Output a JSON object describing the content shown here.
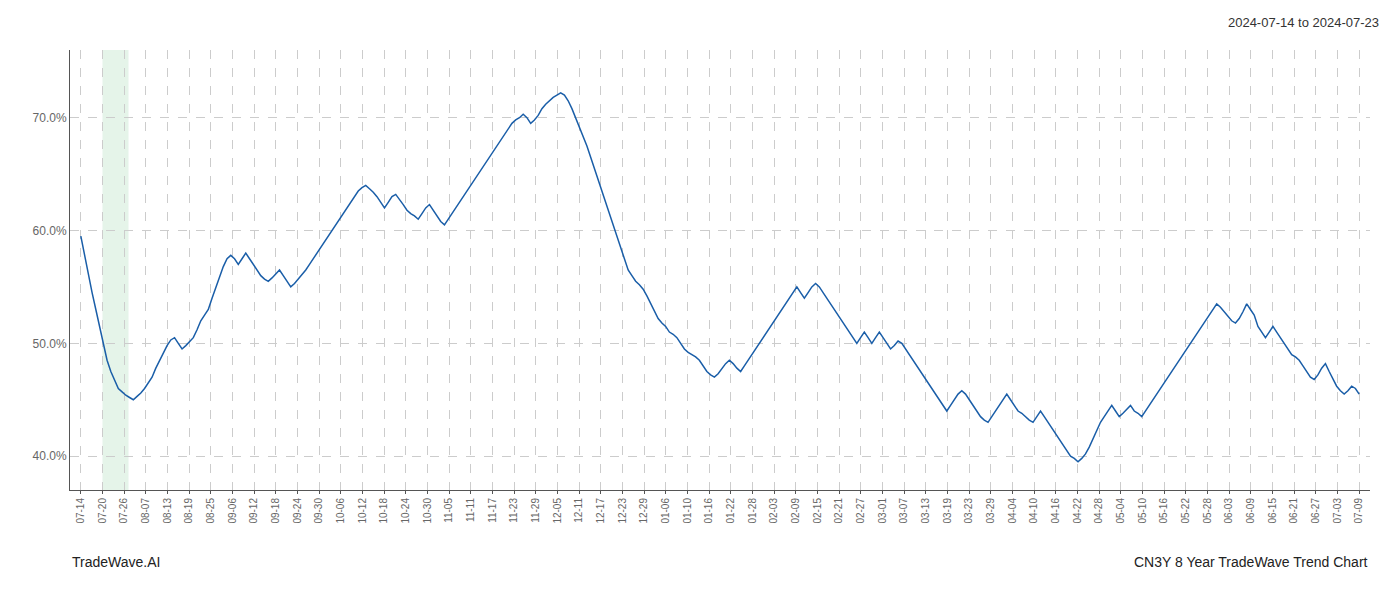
{
  "chart_data": {
    "type": "line",
    "title": "2024-07-14 to 2024-07-23",
    "annotations": [
      "TradeWave.AI",
      "CN3Y 8 Year TradeWave Trend Chart"
    ],
    "color": "#1a5ea8",
    "grid": true,
    "xlim": [
      -0.5,
      59.5
    ],
    "xticks": [
      {
        "value": 0,
        "label": "07-14"
      },
      {
        "value": 1,
        "label": "07-20"
      },
      {
        "value": 2,
        "label": "07-26"
      },
      {
        "value": 3,
        "label": "08-07"
      },
      {
        "value": 4,
        "label": "08-13"
      },
      {
        "value": 5,
        "label": "08-19"
      },
      {
        "value": 6,
        "label": "08-25"
      },
      {
        "value": 7,
        "label": "09-06"
      },
      {
        "value": 8,
        "label": "09-12"
      },
      {
        "value": 9,
        "label": "09-18"
      },
      {
        "value": 10,
        "label": "09-24"
      },
      {
        "value": 11,
        "label": "09-30"
      },
      {
        "value": 12,
        "label": "10-06"
      },
      {
        "value": 13,
        "label": "10-12"
      },
      {
        "value": 14,
        "label": "10-18"
      },
      {
        "value": 15,
        "label": "10-24"
      },
      {
        "value": 16,
        "label": "10-30"
      },
      {
        "value": 17,
        "label": "11-05"
      },
      {
        "value": 18,
        "label": "11-11"
      },
      {
        "value": 19,
        "label": "11-17"
      },
      {
        "value": 20,
        "label": "11-23"
      },
      {
        "value": 21,
        "label": "11-29"
      },
      {
        "value": 22,
        "label": "12-05"
      },
      {
        "value": 23,
        "label": "12-11"
      },
      {
        "value": 24,
        "label": "12-17"
      },
      {
        "value": 25,
        "label": "12-23"
      },
      {
        "value": 26,
        "label": "12-29"
      },
      {
        "value": 27,
        "label": "01-06"
      },
      {
        "value": 28,
        "label": "01-10"
      },
      {
        "value": 29,
        "label": "01-16"
      },
      {
        "value": 30,
        "label": "01-22"
      },
      {
        "value": 31,
        "label": "01-28"
      },
      {
        "value": 32,
        "label": "02-03"
      },
      {
        "value": 33,
        "label": "02-09"
      },
      {
        "value": 34,
        "label": "02-15"
      },
      {
        "value": 35,
        "label": "02-21"
      },
      {
        "value": 36,
        "label": "02-27"
      },
      {
        "value": 37,
        "label": "03-01"
      },
      {
        "value": 38,
        "label": "03-07"
      },
      {
        "value": 39,
        "label": "03-13"
      },
      {
        "value": 40,
        "label": "03-19"
      },
      {
        "value": 41,
        "label": "03-23"
      },
      {
        "value": 42,
        "label": "03-29"
      },
      {
        "value": 43,
        "label": "04-04"
      },
      {
        "value": 44,
        "label": "04-10"
      },
      {
        "value": 45,
        "label": "04-16"
      },
      {
        "value": 46,
        "label": "04-22"
      },
      {
        "value": 47,
        "label": "04-28"
      },
      {
        "value": 48,
        "label": "05-04"
      },
      {
        "value": 49,
        "label": "05-10"
      },
      {
        "value": 50,
        "label": "05-16"
      },
      {
        "value": 51,
        "label": "05-22"
      },
      {
        "value": 52,
        "label": "05-28"
      },
      {
        "value": 53,
        "label": "06-03"
      },
      {
        "value": 54,
        "label": "06-09"
      },
      {
        "value": 55,
        "label": "06-15"
      },
      {
        "value": 56,
        "label": "06-21"
      },
      {
        "value": 57,
        "label": "06-27"
      },
      {
        "value": 58,
        "label": "07-03"
      },
      {
        "value": 59,
        "label": "07-09"
      }
    ],
    "ylim": [
      37,
      76
    ],
    "yticks": [
      {
        "value": 40,
        "label": "40.0%"
      },
      {
        "value": 50,
        "label": "50.0%"
      },
      {
        "value": 60,
        "label": "60.0%"
      },
      {
        "value": 70,
        "label": "70.0%"
      }
    ],
    "highlight": {
      "x": [
        1,
        2.2
      ],
      "color": "#d4edda"
    },
    "values": [
      59.5,
      57.8,
      56.0,
      54.5,
      53.0,
      51.5,
      50.0,
      48.5,
      47.5,
      46.8,
      46.0,
      45.7,
      45.4,
      45.2,
      45.0,
      45.3,
      45.6,
      46.0,
      46.5,
      47.0,
      47.8,
      48.5,
      49.2,
      49.8,
      50.3,
      50.5,
      50.0,
      49.5,
      49.8,
      50.2,
      50.5,
      51.2,
      52.0,
      52.5,
      53.0,
      54.0,
      55.0,
      56.0,
      56.8,
      57.5,
      57.8,
      57.5,
      57.0,
      57.5,
      58.0,
      57.5,
      57.0,
      56.5,
      56.0,
      55.7,
      55.5,
      55.8,
      56.2,
      56.5,
      56.0,
      55.5,
      55.0,
      55.3,
      55.7,
      56.0,
      56.5,
      57.0,
      57.5,
      58.0,
      58.5,
      59.0,
      59.5,
      60.0,
      60.5,
      61.0,
      61.5,
      62.0,
      62.5,
      63.0,
      63.5,
      63.8,
      64.0,
      63.7,
      63.4,
      63.0,
      62.5,
      62.0,
      62.5,
      63.0,
      63.2,
      62.8,
      62.3,
      61.8,
      61.5,
      61.3,
      61.0,
      61.5,
      62.0,
      62.3,
      61.8,
      61.2,
      60.8,
      60.5,
      61.0,
      61.5,
      62.0,
      62.5,
      63.0,
      63.5,
      64.0,
      64.5,
      65.0,
      65.5,
      66.0,
      66.5,
      67.0,
      67.5,
      68.0,
      68.5,
      69.0,
      69.5,
      69.8,
      70.0,
      70.3,
      70.0,
      69.5,
      69.8,
      70.2,
      70.8,
      71.2,
      71.5,
      71.8,
      72.0,
      72.2,
      72.0,
      71.5,
      70.8,
      70.0,
      69.2,
      68.3,
      67.5,
      66.5,
      65.5,
      64.5,
      63.5,
      62.5,
      61.5,
      60.5,
      59.5,
      58.5,
      57.5,
      56.5,
      56.0,
      55.5,
      55.2,
      54.8,
      54.2,
      53.5,
      52.8,
      52.2,
      51.8,
      51.5,
      51.0,
      50.8,
      50.5,
      50.0,
      49.5,
      49.2,
      49.0,
      48.8,
      48.5,
      48.0,
      47.5,
      47.2,
      47.0,
      47.3,
      47.8,
      48.2,
      48.5,
      48.2,
      47.8,
      47.5,
      48.0,
      48.5,
      49.0,
      49.5,
      50.0,
      50.5,
      51.0,
      51.5,
      52.0,
      52.5,
      53.0,
      53.5,
      54.0,
      54.5,
      55.0,
      54.5,
      54.0,
      54.5,
      55.0,
      55.3,
      55.0,
      54.5,
      54.0,
      53.5,
      53.0,
      52.5,
      52.0,
      51.5,
      51.0,
      50.5,
      50.0,
      50.5,
      51.0,
      50.5,
      50.0,
      50.5,
      51.0,
      50.5,
      50.0,
      49.5,
      49.8,
      50.2,
      50.0,
      49.5,
      49.0,
      48.5,
      48.0,
      47.5,
      47.0,
      46.5,
      46.0,
      45.5,
      45.0,
      44.5,
      44.0,
      44.5,
      45.0,
      45.5,
      45.8,
      45.5,
      45.0,
      44.5,
      44.0,
      43.5,
      43.2,
      43.0,
      43.5,
      44.0,
      44.5,
      45.0,
      45.5,
      45.0,
      44.5,
      44.0,
      43.8,
      43.5,
      43.2,
      43.0,
      43.5,
      44.0,
      43.5,
      43.0,
      42.5,
      42.0,
      41.5,
      41.0,
      40.5,
      40.0,
      39.8,
      39.5,
      39.8,
      40.2,
      40.8,
      41.5,
      42.2,
      43.0,
      43.5,
      44.0,
      44.5,
      44.0,
      43.5,
      43.8,
      44.2,
      44.5,
      44.0,
      43.8,
      43.5,
      44.0,
      44.5,
      45.0,
      45.5,
      46.0,
      46.5,
      47.0,
      47.5,
      48.0,
      48.5,
      49.0,
      49.5,
      50.0,
      50.5,
      51.0,
      51.5,
      52.0,
      52.5,
      53.0,
      53.5,
      53.2,
      52.8,
      52.5,
      52.0,
      51.8,
      52.2,
      52.8,
      53.5,
      53.0,
      52.5,
      51.5,
      51.0,
      50.5,
      51.0,
      51.5,
      51.0,
      50.5,
      50.0,
      49.5,
      49.0,
      48.8,
      48.5,
      48.0,
      47.5,
      47.0,
      46.8,
      47.2,
      47.8,
      48.2,
      47.5,
      46.8,
      46.2,
      45.8,
      45.5,
      45.8,
      46.2,
      46.0,
      45.5
    ]
  }
}
